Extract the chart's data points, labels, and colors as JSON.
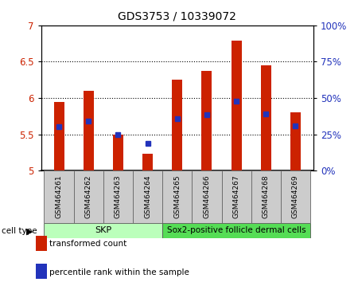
{
  "title": "GDS3753 / 10339072",
  "samples": [
    "GSM464261",
    "GSM464262",
    "GSM464263",
    "GSM464264",
    "GSM464265",
    "GSM464266",
    "GSM464267",
    "GSM464268",
    "GSM464269"
  ],
  "bar_tops": [
    5.95,
    6.1,
    5.5,
    5.23,
    6.25,
    6.37,
    6.79,
    6.45,
    5.8
  ],
  "bar_bottom": 5.0,
  "blue_dots": [
    5.6,
    5.68,
    5.5,
    5.38,
    5.72,
    5.77,
    5.96,
    5.78,
    5.62
  ],
  "bar_color": "#cc2200",
  "dot_color": "#2233bb",
  "ylim_left": [
    5.0,
    7.0
  ],
  "ylim_right": [
    0,
    100
  ],
  "yticks_left": [
    5.0,
    5.5,
    6.0,
    6.5,
    7.0
  ],
  "ytick_labels_left": [
    "5",
    "5.5",
    "6",
    "6.5",
    "7"
  ],
  "yticks_right": [
    0,
    25,
    50,
    75,
    100
  ],
  "ytick_labels_right": [
    "0%",
    "25%",
    "50%",
    "75%",
    "100%"
  ],
  "grid_values": [
    5.5,
    6.0,
    6.5
  ],
  "skp_color": "#bbffbb",
  "sox2_color": "#55dd55",
  "xlabel_color_left": "#cc2200",
  "xlabel_color_right": "#2233bb",
  "legend_red_label": "transformed count",
  "legend_blue_label": "percentile rank within the sample",
  "bar_width": 0.35,
  "tick_bg": "#cccccc",
  "cell_type_text": "cell type"
}
